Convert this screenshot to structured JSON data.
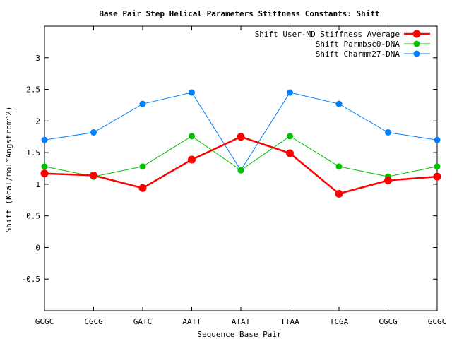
{
  "chart_data": {
    "type": "line",
    "title": "Base Pair Step Helical Parameters Stiffness Constants: Shift",
    "xlabel": "Sequence Base Pair",
    "ylabel": "Shift (Kcal/mol*Angstrom^2)",
    "categories": [
      "GCGC",
      "CGCG",
      "GATC",
      "AATT",
      "ATAT",
      "TTAA",
      "TCGA",
      "CGCG",
      "GCGC"
    ],
    "ylim": [
      -1,
      3.5
    ],
    "yticks": [
      -0.5,
      0,
      0.5,
      1,
      1.5,
      2,
      2.5,
      3
    ],
    "ytick_labels": [
      "-0.5",
      "0",
      "0.5",
      "1",
      "1.5",
      "2",
      "2.5",
      "3"
    ],
    "grid": false,
    "legend_position": "top-right",
    "series": [
      {
        "name": "Shift User-MD Stiffness Average",
        "color": "#ff0000",
        "values": [
          1.17,
          1.14,
          0.94,
          1.39,
          1.75,
          1.49,
          0.85,
          1.06,
          1.12
        ]
      },
      {
        "name": "Shift Parmbsc0-DNA",
        "color": "#00c000",
        "values": [
          1.28,
          1.12,
          1.28,
          1.76,
          1.22,
          1.76,
          1.28,
          1.12,
          1.28
        ]
      },
      {
        "name": "Shift Charmm27-DNA",
        "color": "#0080ff",
        "values": [
          1.7,
          1.82,
          2.27,
          2.45,
          1.22,
          2.45,
          2.27,
          1.82,
          1.7
        ]
      }
    ]
  }
}
